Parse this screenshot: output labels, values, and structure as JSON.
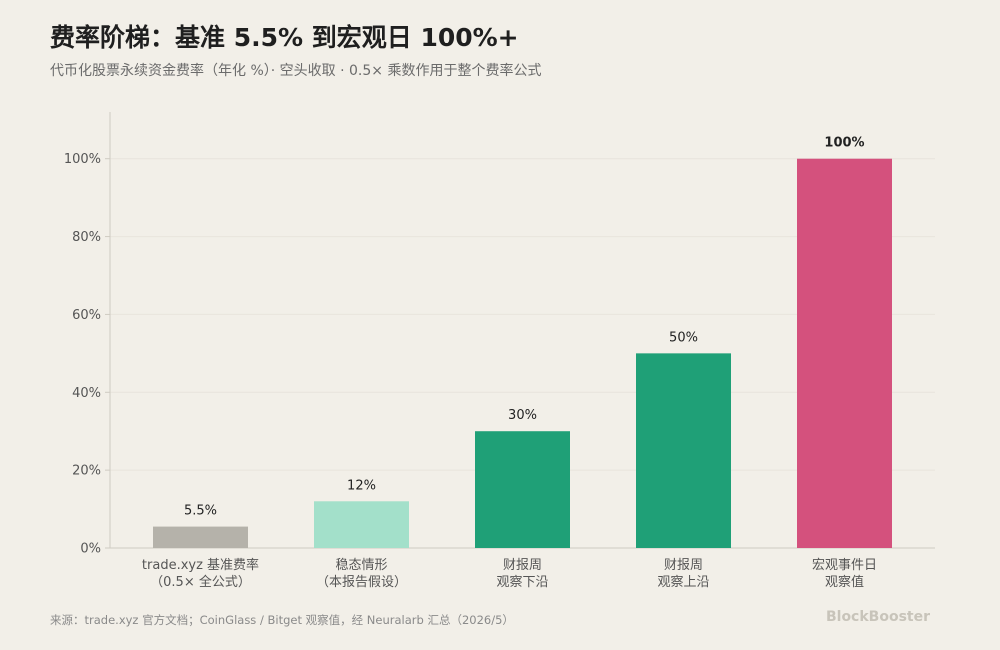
{
  "title": "费率阶梯：基准 5.5% 到宏观日 100%+",
  "subtitle": "代币化股票永续资金费率（年化 %）· 空头收取 · 0.5× 乘数作用于整个费率公式",
  "footer": {
    "source": "来源：trade.xyz 官方文档；CoinGlass / Bitget 观察值，经 Neuralarb 汇总（2026/5）",
    "brand": "BlockBooster"
  },
  "chart_data": {
    "type": "bar",
    "categories": [
      [
        "trade.xyz 基准费率",
        "（0.5× 全公式）"
      ],
      [
        "稳态情形",
        "（本报告假设）"
      ],
      [
        "财报周",
        "观察下沿"
      ],
      [
        "财报周",
        "观察上沿"
      ],
      [
        "宏观事件日",
        "观察值"
      ]
    ],
    "values": [
      5.5,
      12,
      30,
      50,
      100
    ],
    "value_labels": [
      "5.5%",
      "12%",
      "30%",
      "50%",
      "100%"
    ],
    "bar_colors": [
      "#b5b2aa",
      "#a3e0ca",
      "#1fa077",
      "#1fa077",
      "#d4517d"
    ],
    "ylim": [
      0,
      112
    ],
    "yticks": [
      0,
      20,
      40,
      60,
      80,
      100
    ],
    "ytick_labels": [
      "0%",
      "20%",
      "40%",
      "60%",
      "80%",
      "100%"
    ],
    "xlabel": "",
    "ylabel": "",
    "grid": true,
    "axis_color": "#cfcbc2",
    "grid_color": "#e8e4dc"
  }
}
